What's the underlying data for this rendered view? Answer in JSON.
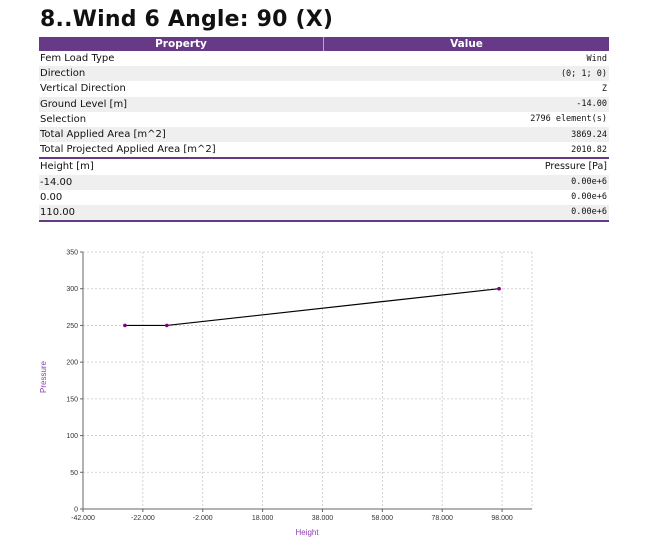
{
  "title": "8..Wind 6 Angle: 90 (X)",
  "table": {
    "header_property": "Property",
    "header_value": "Value",
    "rows": [
      {
        "key": "Fem Load Type",
        "value": "Wind"
      },
      {
        "key": "Direction",
        "value": "(0; 1; 0)"
      },
      {
        "key": "Vertical Direction",
        "value": "Z"
      },
      {
        "key": "Ground Level [m]",
        "value": "-14.00"
      },
      {
        "key": "Selection",
        "value": "2796 element(s)"
      },
      {
        "key": "Total Applied Area [m^2]",
        "value": "3869.24"
      },
      {
        "key": "Total Projected Applied Area [m^2]",
        "value": "2010.82"
      }
    ],
    "sub_header_key": "Height [m]",
    "sub_header_value": "Pressure [Pa]",
    "sub_rows": [
      {
        "key": "-14.00",
        "value": "0.00e+6"
      },
      {
        "key": "0.00",
        "value": "0.00e+6"
      },
      {
        "key": "110.00",
        "value": "0.00e+6"
      }
    ]
  },
  "colors": {
    "accent": "#663a86",
    "axis_label": "#8c3fb3",
    "line": "#000000",
    "marker": "#800080"
  },
  "chart_data": {
    "type": "line",
    "xlabel": "Height",
    "ylabel": "Pressure",
    "xlim": [
      -42,
      108
    ],
    "ylim": [
      0,
      350
    ],
    "x_ticks": [
      -42,
      -22,
      -2,
      18,
      38,
      58,
      78,
      98
    ],
    "x_tick_labels": [
      "-42.000",
      "-22.000",
      "-2.000",
      "18.000",
      "38.000",
      "58.000",
      "78.000",
      "98.000"
    ],
    "y_ticks": [
      0,
      50,
      100,
      150,
      200,
      250,
      300,
      350
    ],
    "y_tick_labels": [
      "0",
      "50",
      "100",
      "150",
      "200",
      "250",
      "300",
      "350"
    ],
    "grid": true,
    "series": [
      {
        "x": [
          -28,
          -14,
          97
        ],
        "y": [
          250,
          250,
          300
        ]
      }
    ]
  }
}
